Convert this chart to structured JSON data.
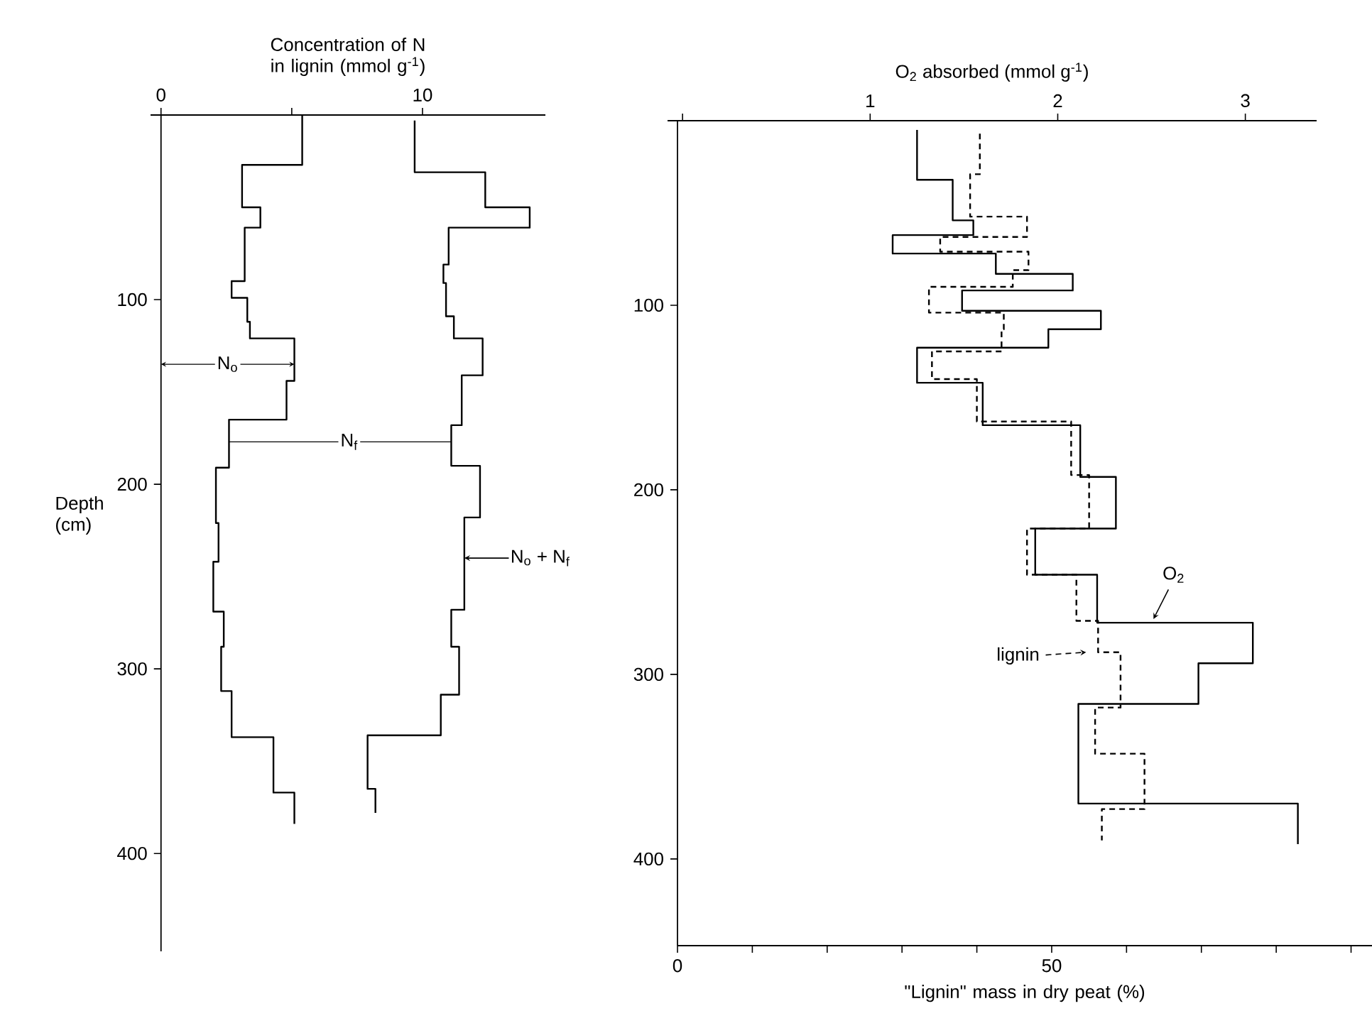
{
  "chart_data": [
    {
      "type": "step",
      "orientation": "horizontal",
      "xlabel": "Concentration of N in lignin (mmol g$^{-1}$)",
      "ylabel": "Depth (cm)",
      "xlim": [
        -0.4,
        14.7
      ],
      "xticks": [
        0,
        {
          "value": 5,
          "label": null
        },
        10
      ],
      "ylim": [
        453,
        0
      ],
      "yticks": [
        100,
        200,
        300,
        400
      ],
      "annotations": [
        {
          "text": "N$_{f}$",
          "x": 7.2,
          "y": 177
        }
      ],
      "series": [
        {
          "name": "N$_{o}$",
          "color": "#000000",
          "line_style": "solid",
          "x": [
            0,
            27,
            50,
            61,
            90,
            99,
            112,
            121,
            144,
            165,
            191,
            221,
            242,
            269,
            288,
            312,
            337,
            367,
            384
          ],
          "values": [
            5.4,
            3.1,
            3.8,
            3.2,
            2.7,
            3.3,
            3.4,
            5.1,
            4.8,
            2.6,
            2.1,
            2.2,
            2.0,
            2.4,
            2.3,
            2.7,
            4.3,
            5.1,
            5.1
          ]
        },
        {
          "name": "N$_{o}$ + N$_{f}$",
          "color": "#000000",
          "line_style": "solid",
          "x": [
            3,
            31,
            50,
            61,
            81,
            91,
            109,
            121,
            141,
            168,
            190,
            218,
            268,
            288,
            314,
            336,
            365,
            378
          ],
          "values": [
            9.7,
            12.4,
            14.1,
            11.0,
            10.8,
            10.9,
            11.2,
            12.3,
            11.5,
            11.1,
            12.2,
            11.6,
            11.1,
            11.4,
            10.7,
            7.9,
            8.2,
            8.2
          ]
        }
      ]
    },
    {
      "type": "step",
      "orientation": "horizontal",
      "xlabel": "\"Lignin\" mass in dry peat (%)",
      "x2label": "O$_{2}$ absorbed (mmol g$^{-1}$)",
      "xlim": [
        0,
        92.8
      ],
      "xticks": [
        0,
        {
          "value": 10,
          "label": null
        },
        {
          "value": 20,
          "label": null
        },
        {
          "value": 30,
          "label": null
        },
        {
          "value": 40,
          "label": null
        },
        50,
        {
          "value": 60,
          "label": null
        },
        {
          "value": 70,
          "label": null
        },
        {
          "value": 80,
          "label": null
        },
        {
          "value": 90,
          "label": null
        }
      ],
      "x2lim": [
        -0.08,
        3.38
      ],
      "x2ticks": [
        {
          "value": 0,
          "label": null
        },
        1,
        2,
        3
      ],
      "ylim": [
        447,
        0
      ],
      "yticks": [
        100,
        200,
        300,
        400
      ],
      "series": [
        {
          "name": "O$_{2}$",
          "axis": "x2",
          "color": "#000000",
          "line_style": "solid",
          "x": [
            5,
            32,
            54,
            62,
            72,
            83,
            92,
            103,
            113,
            123,
            142,
            165,
            193,
            221,
            246,
            272,
            294,
            316,
            370,
            392
          ],
          "values": [
            1.25,
            1.44,
            1.55,
            1.12,
            1.67,
            2.08,
            1.49,
            2.23,
            1.95,
            1.25,
            1.6,
            2.12,
            2.31,
            1.88,
            2.21,
            3.04,
            2.75,
            2.11,
            3.28,
            3.28
          ]
        },
        {
          "name": "lignin",
          "color": "#000000",
          "line_style": "dashed",
          "x": [
            7,
            29,
            52,
            63,
            71,
            81,
            90,
            104,
            113,
            125,
            140,
            163,
            192,
            221,
            246,
            271,
            288,
            318,
            343,
            373,
            390
          ],
          "values": [
            40.4,
            39.1,
            46.7,
            35.1,
            46.9,
            44.8,
            33.6,
            43.6,
            43.3,
            34.0,
            40.0,
            52.6,
            55.0,
            46.7,
            53.3,
            56.2,
            59.2,
            55.8,
            62.4,
            56.7,
            56.7
          ]
        }
      ]
    }
  ]
}
